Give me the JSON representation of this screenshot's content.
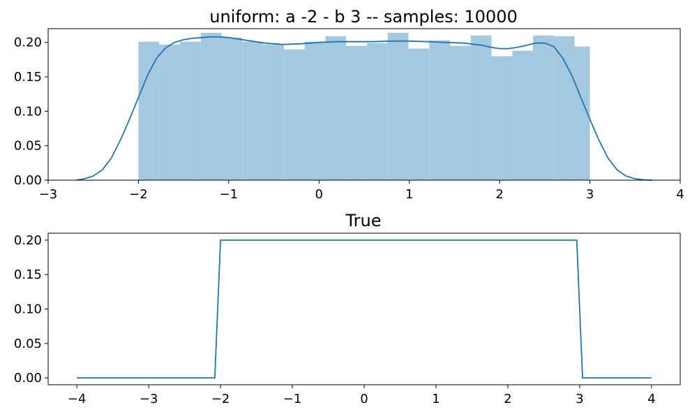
{
  "chart_data": [
    {
      "type": "bar",
      "title": "uniform: a -2 - b 3 -- samples: 10000",
      "xlabel": "",
      "ylabel": "",
      "xlim": [
        -3,
        4
      ],
      "ylim": [
        0,
        0.22
      ],
      "x_ticks": [
        -3,
        -2,
        -1,
        0,
        1,
        2,
        3,
        4
      ],
      "x_tick_labels": [
        "−3",
        "−2",
        "−1",
        "0",
        "1",
        "2",
        "3",
        "4"
      ],
      "y_ticks": [
        0,
        0.05,
        0.1,
        0.15,
        0.2
      ],
      "y_tick_labels": [
        "0.00",
        "0.05",
        "0.10",
        "0.15",
        "0.20"
      ],
      "grid": false,
      "histogram": {
        "bin_edges": [
          -2.0,
          -1.77,
          -1.54,
          -1.31,
          -1.08,
          -0.85,
          -0.62,
          -0.39,
          -0.16,
          0.07,
          0.3,
          0.53,
          0.76,
          0.99,
          1.22,
          1.45,
          1.68,
          1.91,
          2.14,
          2.37,
          2.6,
          2.83,
          3.0
        ],
        "values": [
          0.201,
          0.197,
          0.201,
          0.214,
          0.207,
          0.201,
          0.197,
          0.19,
          0.201,
          0.209,
          0.195,
          0.199,
          0.214,
          0.191,
          0.203,
          0.195,
          0.21,
          0.18,
          0.188,
          0.21,
          0.209,
          0.194
        ],
        "color": "#a5c8e1"
      },
      "kde": {
        "x": [
          -2.69,
          -2.6,
          -2.5,
          -2.4,
          -2.3,
          -2.2,
          -2.1,
          -2.0,
          -1.9,
          -1.8,
          -1.7,
          -1.6,
          -1.5,
          -1.4,
          -1.3,
          -1.2,
          -1.1,
          -1.0,
          -0.8,
          -0.6,
          -0.4,
          -0.2,
          0.0,
          0.2,
          0.4,
          0.6,
          0.8,
          1.0,
          1.2,
          1.4,
          1.6,
          1.8,
          1.9,
          2.0,
          2.1,
          2.2,
          2.3,
          2.4,
          2.5,
          2.6,
          2.7,
          2.8,
          2.9,
          3.0,
          3.1,
          3.2,
          3.3,
          3.4,
          3.5,
          3.6,
          3.69
        ],
        "y": [
          0.0,
          0.002,
          0.006,
          0.015,
          0.032,
          0.058,
          0.088,
          0.12,
          0.152,
          0.177,
          0.192,
          0.2,
          0.204,
          0.206,
          0.207,
          0.208,
          0.208,
          0.207,
          0.203,
          0.199,
          0.197,
          0.198,
          0.2,
          0.201,
          0.201,
          0.201,
          0.202,
          0.202,
          0.201,
          0.2,
          0.199,
          0.196,
          0.193,
          0.191,
          0.191,
          0.193,
          0.196,
          0.199,
          0.199,
          0.194,
          0.177,
          0.152,
          0.12,
          0.088,
          0.058,
          0.032,
          0.015,
          0.006,
          0.002,
          0.0005,
          0.0
        ],
        "color": "#1f77b4"
      }
    },
    {
      "type": "line",
      "title": "True",
      "xlabel": "",
      "ylabel": "",
      "xlim": [
        -4.4,
        4.4
      ],
      "ylim": [
        -0.01,
        0.21
      ],
      "x_ticks": [
        -4,
        -3,
        -2,
        -1,
        0,
        1,
        2,
        3,
        4
      ],
      "x_tick_labels": [
        "−4",
        "−3",
        "−2",
        "−1",
        "0",
        "1",
        "2",
        "3",
        "4"
      ],
      "y_ticks": [
        0,
        0.05,
        0.1,
        0.15,
        0.2
      ],
      "y_tick_labels": [
        "0.00",
        "0.05",
        "0.10",
        "0.15",
        "0.20"
      ],
      "grid": false,
      "series": [
        {
          "x": [
            -4.0,
            -2.08,
            -2.0,
            2.96,
            3.04,
            4.0
          ],
          "y": [
            0.0,
            0.0,
            0.2,
            0.2,
            0.0,
            0.0
          ],
          "color": "#1f77b4"
        }
      ]
    }
  ]
}
